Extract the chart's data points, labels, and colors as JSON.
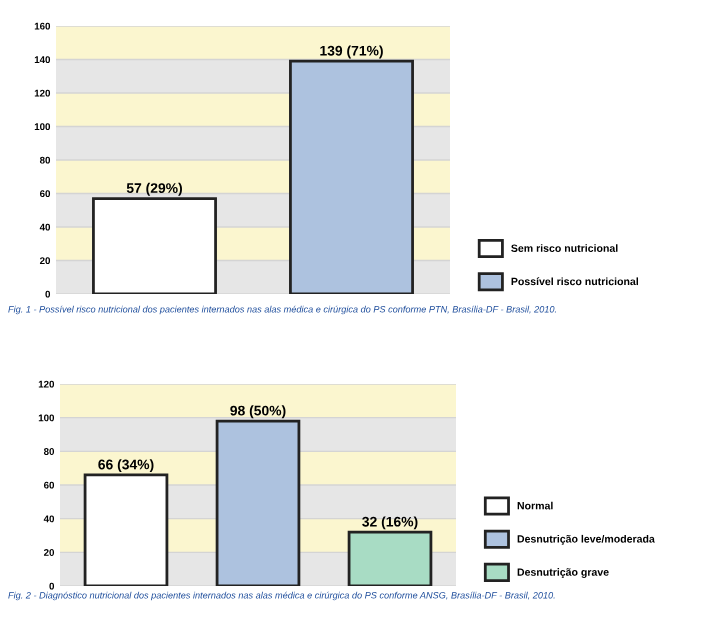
{
  "chart_data": [
    {
      "type": "bar",
      "stacked": true,
      "categories": [
        null,
        null
      ],
      "ylim": [
        0,
        160
      ],
      "yticks": [
        0,
        20,
        40,
        60,
        80,
        100,
        120,
        140,
        160
      ],
      "grid": "y",
      "legend": "bottom right",
      "series": [
        {
          "name": "Sem risco nutricional",
          "color": "#ffffff",
          "values": [
            57,
            null
          ],
          "value_labels": [
            "57 (29%)",
            null
          ]
        },
        {
          "name": "Possível risco nutricional",
          "color": "#adc2df",
          "values": [
            null,
            139
          ],
          "value_labels": [
            null,
            "139 (71%)"
          ]
        }
      ],
      "annotations": [
        "Fig. 1 - Possível risco nutricional dos pacientes internados nas alas médica e cirúrgica do PS conforme PTN, Brasília-DF - Brasil, 2010."
      ]
    },
    {
      "type": "bar",
      "stacked": true,
      "categories": [
        null,
        null,
        null
      ],
      "ylim": [
        0,
        120
      ],
      "yticks": [
        0,
        20,
        40,
        60,
        80,
        100,
        120
      ],
      "grid": "y",
      "legend": "bottom right",
      "series": [
        {
          "name": "Normal",
          "color": "#ffffff",
          "values": [
            66,
            null,
            null
          ],
          "value_labels": [
            "66 (34%)",
            null,
            null
          ]
        },
        {
          "name": "Desnutrição leve/moderada",
          "color": "#adc2df",
          "values": [
            null,
            98,
            null
          ],
          "value_labels": [
            null,
            "98 (50%)",
            null
          ]
        },
        {
          "name": "Desnutrição grave",
          "color": "#a8dcc4",
          "values": [
            null,
            null,
            32
          ],
          "value_labels": [
            null,
            null,
            "32 (16%)"
          ]
        }
      ],
      "annotations": [
        "Fig. 2 - Diagnóstico nutricional dos pacientes internados nas alas médica e cirúrgica do PS conforme ANSG, Brasília-DF - Brasil, 2010."
      ]
    }
  ]
}
